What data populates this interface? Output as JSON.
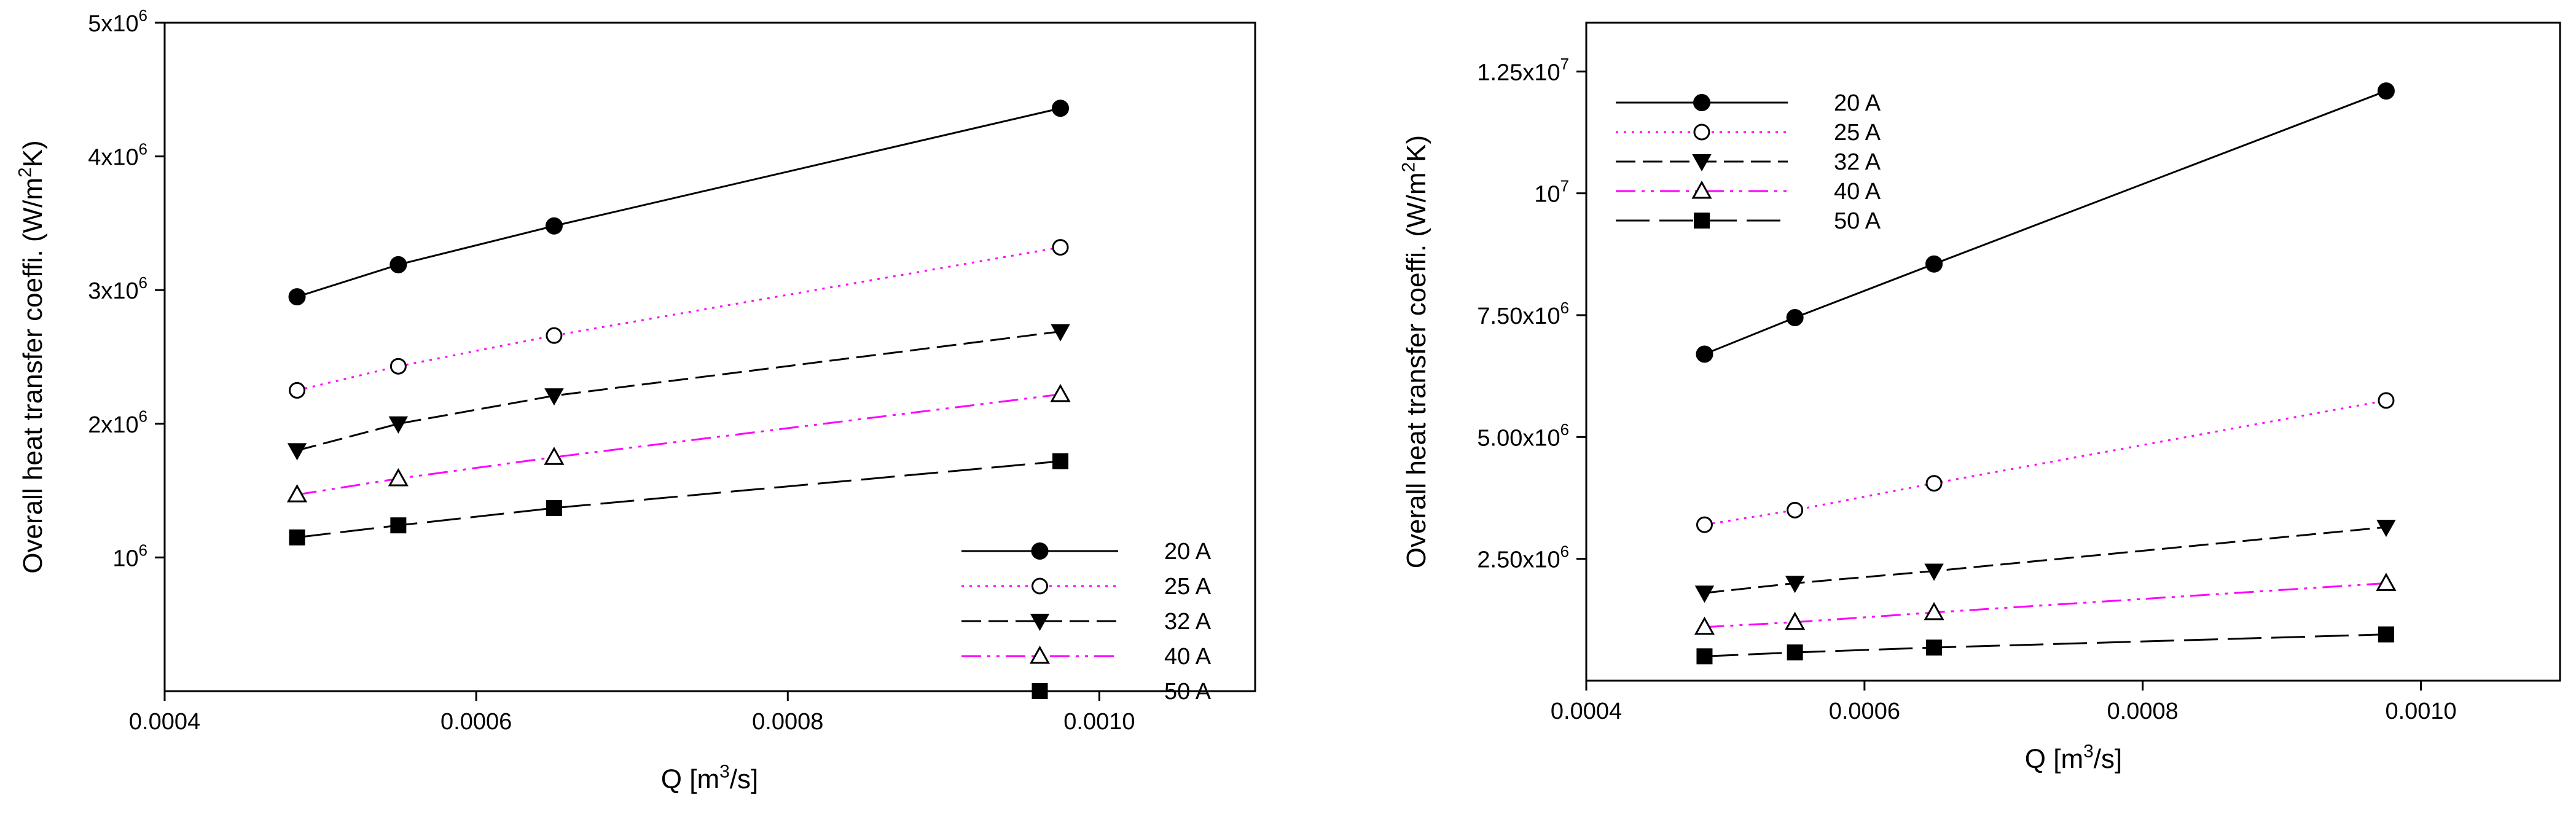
{
  "chart_data": [
    {
      "type": "line",
      "xlabel": "Q [m³/s]",
      "ylabel": "Overall heat transfer coeffi. (W/m²K)",
      "xlim": [
        0.0004,
        0.0011
      ],
      "ylim": [
        0,
        5000000
      ],
      "x_ticks": [
        0.0004,
        0.0006,
        0.0008,
        0.001
      ],
      "x_tick_labels": [
        "0.0004",
        "0.0006",
        "0.0008",
        "0.0010"
      ],
      "y_ticks": [
        1000000,
        2000000,
        3000000,
        4000000,
        5000000
      ],
      "y_tick_labels": [
        {
          "base": "10",
          "exp": "6"
        },
        {
          "base": "2x10",
          "exp": "6"
        },
        {
          "base": "3x10",
          "exp": "6"
        },
        {
          "base": "4x10",
          "exp": "6"
        },
        {
          "base": "5x10",
          "exp": "6"
        }
      ],
      "legend_position": "bottom-right",
      "x": [
        0.000485,
        0.00055,
        0.00065,
        0.000975
      ],
      "series": [
        {
          "name": "20 A",
          "values": [
            2950000,
            3190000,
            3480000,
            4360000
          ],
          "color": "#000000",
          "dash": "solid",
          "marker": "circle-filled"
        },
        {
          "name": "25 A",
          "values": [
            2250000,
            2430000,
            2660000,
            3320000
          ],
          "color": "#ff00ff",
          "dash": "dotted",
          "marker": "circle-open"
        },
        {
          "name": "32 A",
          "values": [
            1800000,
            2000000,
            2210000,
            2690000
          ],
          "color": "#000000",
          "dash": "dashed",
          "marker": "triangle-down-filled"
        },
        {
          "name": "40 A",
          "values": [
            1470000,
            1590000,
            1750000,
            2220000
          ],
          "color": "#ff00ff",
          "dash": "dashdotdot",
          "marker": "triangle-up-open"
        },
        {
          "name": "50 A",
          "values": [
            1150000,
            1240000,
            1370000,
            1720000
          ],
          "color": "#000000",
          "dash": "longdash",
          "marker": "square-filled"
        }
      ]
    },
    {
      "type": "line",
      "xlabel": "Q [m³/s]",
      "ylabel": "Overall heat transfer coeffi. (W/m²K)",
      "xlim": [
        0.0004,
        0.0011
      ],
      "ylim": [
        0,
        13500000
      ],
      "x_ticks": [
        0.0004,
        0.0006,
        0.0008,
        0.001
      ],
      "x_tick_labels": [
        "0.0004",
        "0.0006",
        "0.0008",
        "0.0010"
      ],
      "y_ticks": [
        2500000,
        5000000,
        7500000,
        10000000,
        12500000
      ],
      "y_tick_labels": [
        {
          "base": "2.50x10",
          "exp": "6"
        },
        {
          "base": "5.00x10",
          "exp": "6"
        },
        {
          "base": "7.50x10",
          "exp": "6"
        },
        {
          "base": "10",
          "exp": "7"
        },
        {
          "base": "1.25x10",
          "exp": "7"
        }
      ],
      "legend_position": "top-left",
      "x": [
        0.000485,
        0.00055,
        0.00065,
        0.000975
      ],
      "series": [
        {
          "name": "20 A",
          "values": [
            6700000,
            7450000,
            8550000,
            12100000
          ],
          "color": "#000000",
          "dash": "solid",
          "marker": "circle-filled"
        },
        {
          "name": "25 A",
          "values": [
            3200000,
            3500000,
            4050000,
            5750000
          ],
          "color": "#ff00ff",
          "dash": "dotted",
          "marker": "circle-open"
        },
        {
          "name": "32 A",
          "values": [
            1800000,
            2000000,
            2250000,
            3150000
          ],
          "color": "#000000",
          "dash": "dashed",
          "marker": "triangle-down-filled"
        },
        {
          "name": "40 A",
          "values": [
            1100000,
            1200000,
            1400000,
            2000000
          ],
          "color": "#ff00ff",
          "dash": "dashdotdot",
          "marker": "triangle-up-open"
        },
        {
          "name": "50 A",
          "values": [
            500000,
            580000,
            680000,
            950000
          ],
          "color": "#000000",
          "dash": "longdash",
          "marker": "square-filled"
        }
      ]
    }
  ]
}
